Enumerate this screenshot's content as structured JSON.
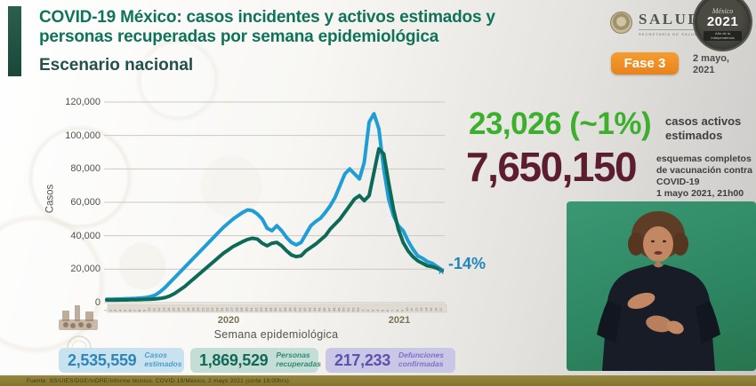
{
  "header": {
    "title_line1": "COVID-19 México: casos incidentes y activos estimados y",
    "title_line2": "personas recuperadas por semana epidemiológica",
    "subtitle": "Escenario nacional",
    "salud_label": "SALUD",
    "salud_sublabel": "SECRETARÍA DE SALUD",
    "badge_mexico": "México",
    "badge_year": "2021",
    "badge_caption": "Año de la Independencia",
    "fase_label": "Fase 3",
    "date": "2 mayo,\n2021"
  },
  "stats_right": {
    "active_value": "23,026 (~1%)",
    "active_label": "casos activos\nestimados",
    "vaccine_value": "7,650,150",
    "vaccine_label": "esquemas completos\nde vacunación contra\nCOVID-19\n1 mayo 2021, 21h00"
  },
  "stats_bottom": [
    {
      "value": "2,535,559",
      "label": "Casos\nestimados",
      "color": "#2e86b8",
      "box_color": "#c8e2f0"
    },
    {
      "value": "1,869,529",
      "label": "Personas\nrecuperadas",
      "color": "#11695a",
      "box_color": "#c4ded6"
    },
    {
      "value": "217,233",
      "label": "Defunciones\nconfirmadas",
      "color": "#5a53ad",
      "box_color": "#c9c6e6"
    }
  ],
  "annotation": {
    "change_label": "-14%",
    "color": "#1f86b8"
  },
  "footer": {
    "source": "Fuente: SS/UIES/DGE/InDRE/Informe técnico. COVID-19/México, 2 mayo 2021 (corte 19:00hrs)"
  },
  "colors": {
    "title_green": "#0f735a",
    "subtitle_green": "#24504a",
    "accent_bar": "#1f5244",
    "fase_orange": "#ee8c24",
    "active_green": "#3cb02c",
    "vaccine_maroon": "#5c1d31",
    "line_blue": "#1f9ed6",
    "line_teal": "#0c6a57",
    "footer_olive": "#8a7b36",
    "video_green": "#2e8763"
  },
  "chart_data": {
    "type": "line",
    "title": "",
    "xlabel": "Semana epidemiológica",
    "ylabel": "Casos",
    "ylim": [
      0,
      120000
    ],
    "y_ticks": [
      "0",
      "20,000",
      "40,000",
      "60,000",
      "80,000",
      "100,000",
      "120,000"
    ],
    "grid": true,
    "legend_position": "none (series color-keyed to bottom stat boxes)",
    "x_year_labels": [
      "2020",
      "2021"
    ],
    "weeks_2020": [
      1,
      2,
      3,
      4,
      5,
      6,
      7,
      8,
      9,
      10,
      11,
      12,
      13,
      14,
      15,
      16,
      17,
      18,
      19,
      20,
      21,
      22,
      23,
      24,
      25,
      26,
      27,
      28,
      29,
      30,
      31,
      32,
      33,
      34,
      35,
      36,
      37,
      38,
      39,
      40,
      41,
      42,
      43,
      44,
      45,
      46,
      47,
      48,
      49,
      50,
      51,
      52,
      53
    ],
    "weeks_2021": [
      1,
      2,
      3,
      4,
      5,
      6,
      7,
      8,
      9,
      10,
      11,
      12,
      13,
      14,
      15,
      16,
      17
    ],
    "series": [
      {
        "name": "Casos estimados (incidentes)",
        "color": "#1f9ed6",
        "width": 4,
        "values": [
          2000,
          2000,
          2100,
          2200,
          2300,
          2400,
          2500,
          2700,
          3000,
          3500,
          4500,
          6500,
          9000,
          12000,
          15000,
          18000,
          21000,
          24000,
          27000,
          30000,
          33000,
          36000,
          39000,
          42000,
          45000,
          47500,
          50000,
          52000,
          54000,
          55500,
          55000,
          53000,
          50000,
          44500,
          43000,
          46000,
          43000,
          39000,
          36000,
          34500,
          36000,
          41000,
          46000,
          48500,
          50500,
          54000,
          58000,
          63000,
          70000,
          77000,
          80000,
          77000,
          74000,
          84000,
          108000,
          113000,
          104000,
          80000,
          62000,
          52000,
          46000,
          43000,
          37000,
          32000,
          28000,
          26500,
          24500,
          23500,
          21500,
          19500
        ]
      },
      {
        "name": "Personas recuperadas",
        "color": "#0c6a57",
        "width": 4,
        "values": [
          1500,
          1500,
          1500,
          1600,
          1600,
          1700,
          1700,
          1800,
          1900,
          2000,
          2200,
          2500,
          3000,
          4000,
          5500,
          7500,
          9500,
          12000,
          14500,
          17000,
          19500,
          22000,
          24500,
          27000,
          29500,
          31500,
          33500,
          35000,
          36500,
          37800,
          38500,
          38000,
          35500,
          34000,
          35500,
          36000,
          34000,
          31000,
          28500,
          27500,
          28000,
          31000,
          33000,
          35000,
          37500,
          40000,
          44000,
          47000,
          50000,
          54000,
          58000,
          62000,
          64000,
          61000,
          64000,
          78000,
          92000,
          89000,
          72000,
          56000,
          44000,
          36000,
          31000,
          27500,
          25000,
          23500,
          22000,
          21500,
          20500,
          19000
        ]
      }
    ],
    "end_annotation": {
      "text": "-14%",
      "marker": "x",
      "series": "Casos estimados (incidentes)",
      "at": "2021 week 17",
      "value": 19500
    }
  }
}
